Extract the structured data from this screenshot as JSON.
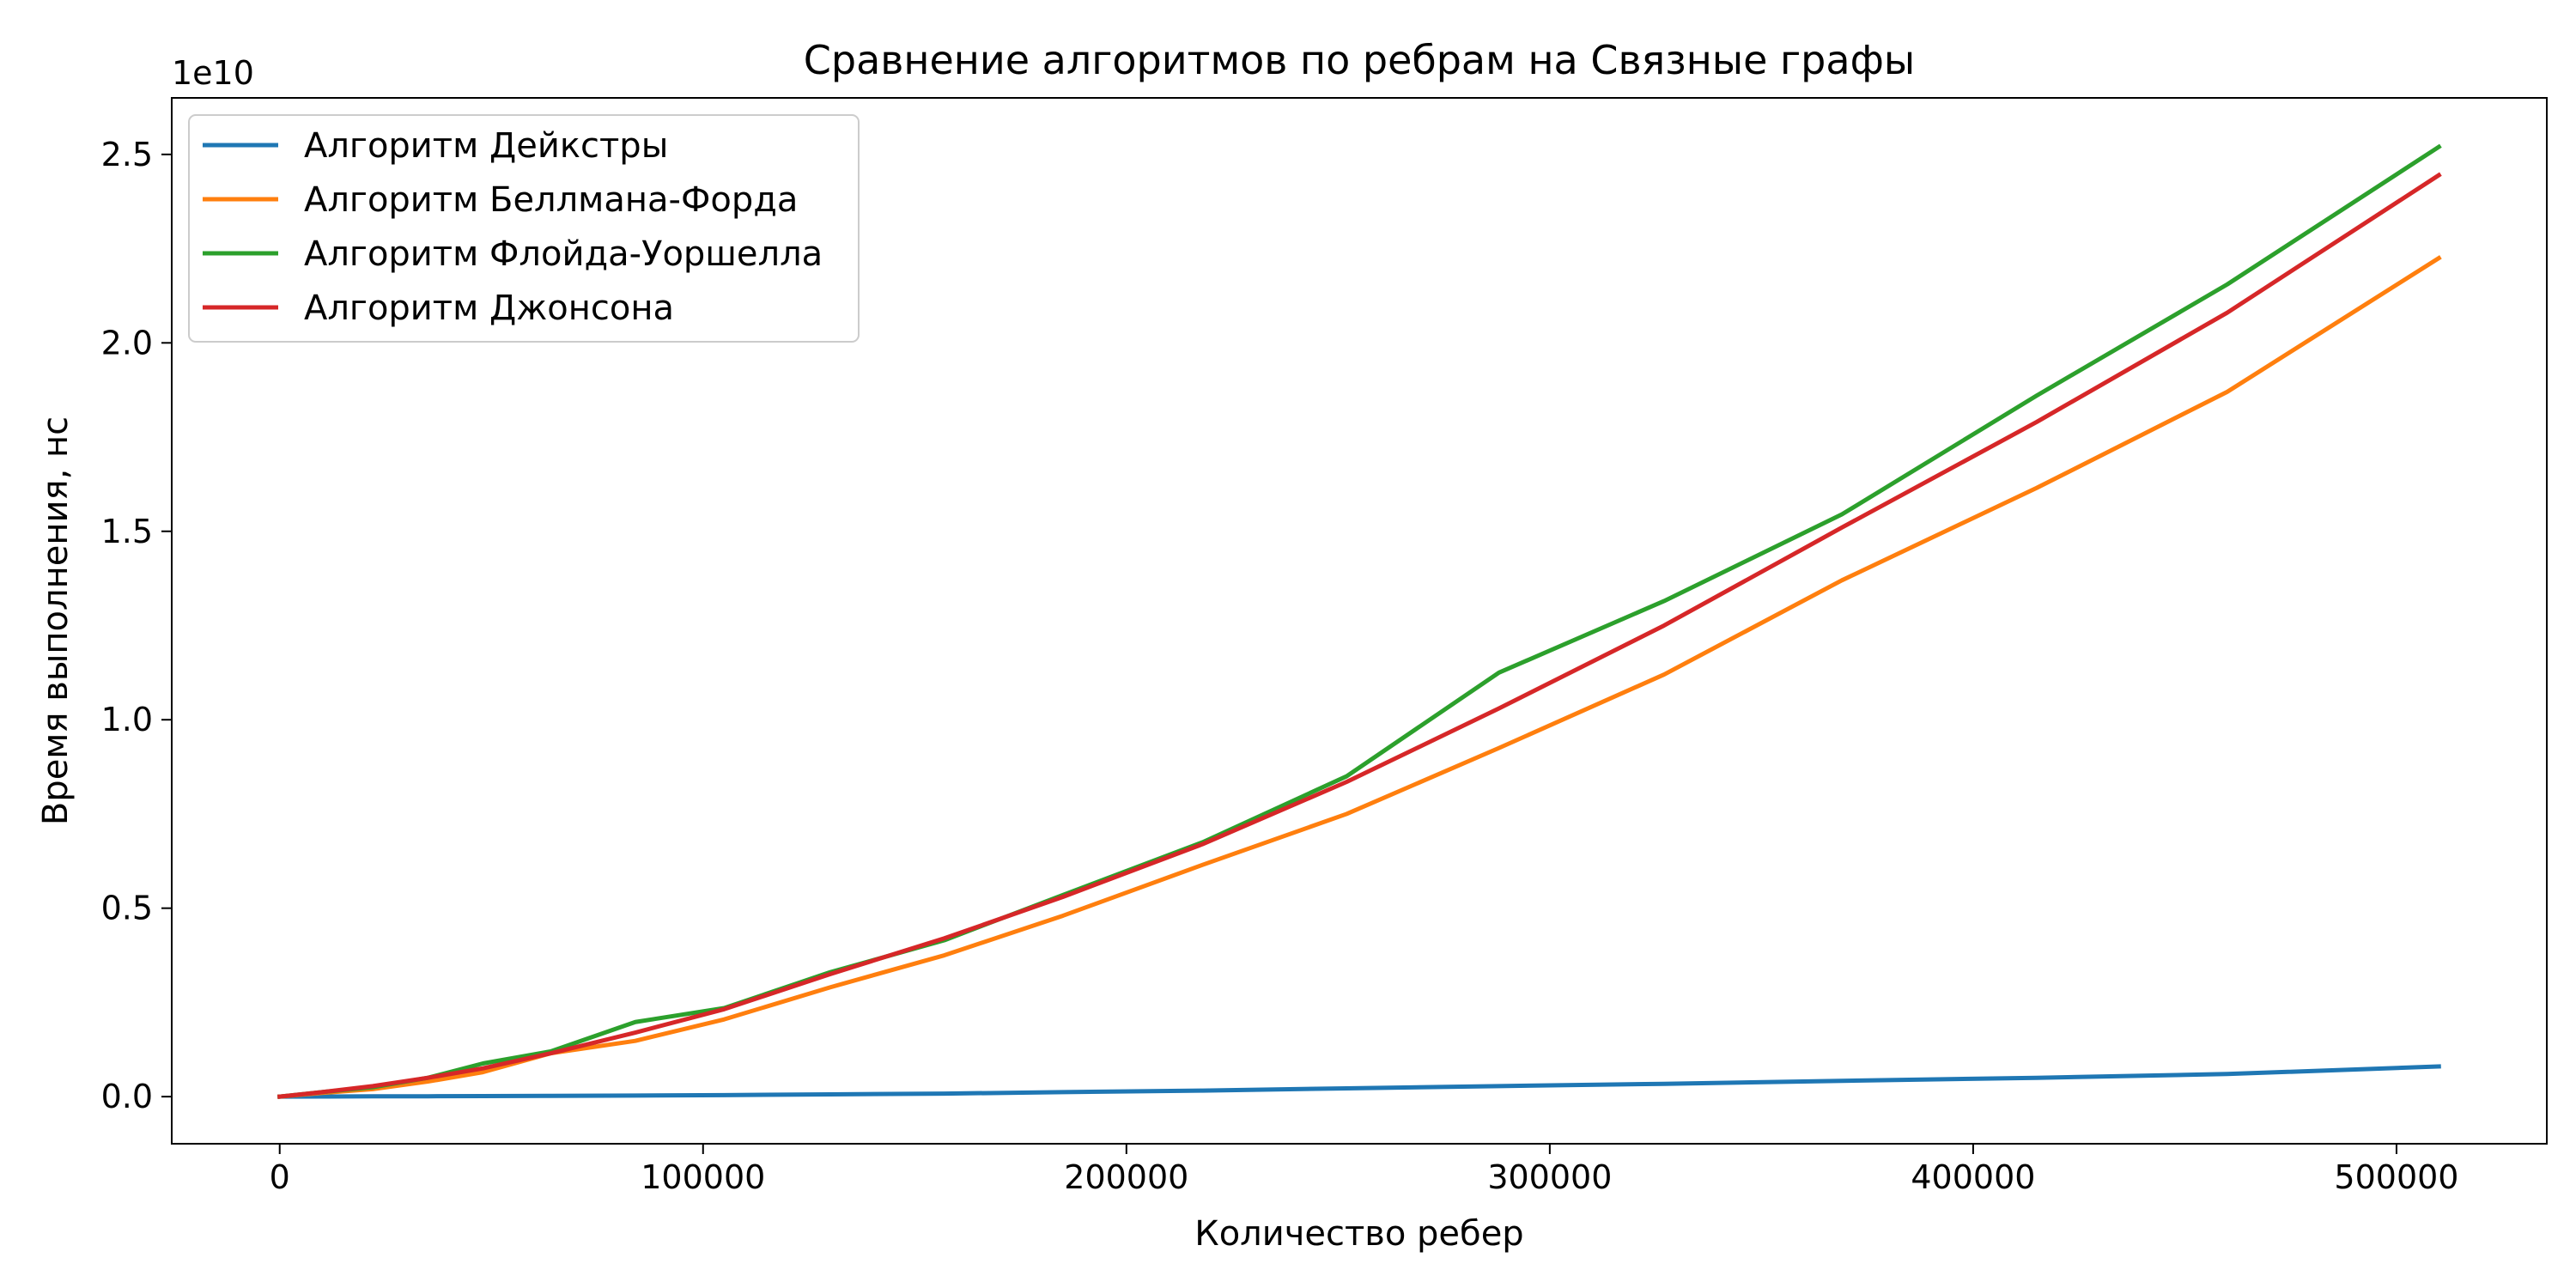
{
  "chart_data": {
    "type": "line",
    "title": "Сравнение алгоритмов по ребрам на Связные графы",
    "xlabel": "Количество ребер",
    "ylabel": "Время выполнения, нс",
    "y_offset_label": "1e10",
    "xlim": [
      -25500,
      535500
    ],
    "ylim": [
      -0.125,
      2.65
    ],
    "y_scale_factor": 10000000000.0,
    "x_ticks": [
      0,
      100000,
      200000,
      300000,
      400000,
      500000
    ],
    "x_tick_labels": [
      "0",
      "100000",
      "200000",
      "300000",
      "400000",
      "500000"
    ],
    "y_ticks": [
      0.0,
      0.5,
      1.0,
      1.5,
      2.0,
      2.5
    ],
    "y_tick_labels": [
      "0.0",
      "0.5",
      "1.0",
      "1.5",
      "2.0",
      "2.5"
    ],
    "grid": false,
    "legend_position": "top-left",
    "series": [
      {
        "name": "Алгоритм Дейкстры",
        "color": "#1f77b4",
        "x": [
          0,
          10000,
          22000,
          35000,
          48000,
          64000,
          84000,
          105000,
          130000,
          157000,
          185000,
          218000,
          252000,
          288000,
          327000,
          369000,
          415000,
          460000,
          510000
        ],
        "y": [
          0.0,
          0.0003,
          0.0008,
          0.001,
          0.0015,
          0.002,
          0.003,
          0.004,
          0.006,
          0.008,
          0.012,
          0.016,
          0.022,
          0.028,
          0.034,
          0.042,
          0.05,
          0.06,
          0.08
        ]
      },
      {
        "name": "Алгоритм Беллмана-Форда",
        "color": "#ff7f0e",
        "x": [
          0,
          10000,
          22000,
          35000,
          48000,
          64000,
          84000,
          105000,
          130000,
          157000,
          185000,
          218000,
          252000,
          288000,
          327000,
          369000,
          415000,
          460000,
          510000
        ],
        "y": [
          0.0,
          0.01,
          0.02,
          0.04,
          0.065,
          0.115,
          0.148,
          0.205,
          0.29,
          0.375,
          0.48,
          0.615,
          0.75,
          0.925,
          1.12,
          1.37,
          1.615,
          1.87,
          2.225
        ]
      },
      {
        "name": "Алгоритм Флойда-Уоршелла",
        "color": "#2ca02c",
        "x": [
          0,
          10000,
          22000,
          35000,
          48000,
          64000,
          84000,
          105000,
          130000,
          157000,
          185000,
          218000,
          252000,
          288000,
          327000,
          369000,
          415000,
          460000,
          510000
        ],
        "y": [
          0.0,
          0.012,
          0.025,
          0.05,
          0.088,
          0.12,
          0.198,
          0.235,
          0.33,
          0.415,
          0.535,
          0.675,
          0.85,
          1.125,
          1.315,
          1.545,
          1.86,
          2.155,
          2.52
        ]
      },
      {
        "name": "Алгоритм Джонсона",
        "color": "#d62728",
        "x": [
          0,
          10000,
          22000,
          35000,
          48000,
          64000,
          84000,
          105000,
          130000,
          157000,
          185000,
          218000,
          252000,
          288000,
          327000,
          369000,
          415000,
          460000,
          510000
        ],
        "y": [
          0.0,
          0.012,
          0.028,
          0.05,
          0.075,
          0.115,
          0.17,
          0.232,
          0.325,
          0.42,
          0.53,
          0.67,
          0.835,
          1.03,
          1.25,
          1.51,
          1.79,
          2.08,
          2.445
        ]
      }
    ]
  }
}
